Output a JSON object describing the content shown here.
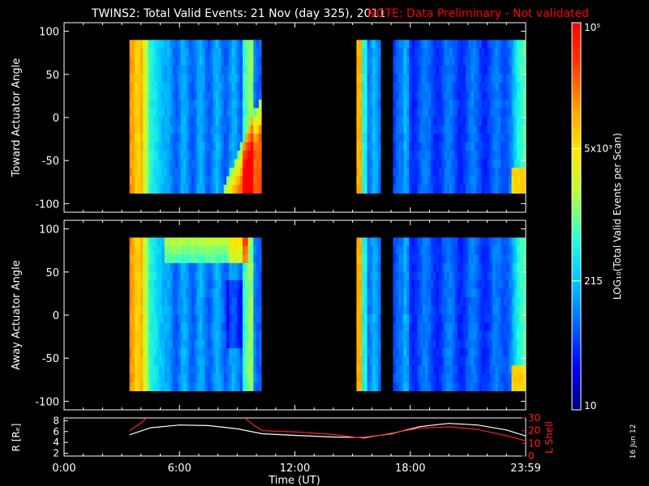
{
  "header": {
    "title": "TWINS2: Total Valid Events: 21 Nov (day 325), 2011",
    "note": "NOTE: Data Preliminary - Not validated"
  },
  "colors": {
    "background": "#000000",
    "foreground": "#ffffff",
    "note": "#ff0000",
    "l_shell": "#ff2020",
    "colormap": [
      "#00007a",
      "#0000ff",
      "#0066ff",
      "#00c8ff",
      "#28ffd8",
      "#b4ff3c",
      "#ffe800",
      "#ffa000",
      "#ff3c00",
      "#ff0000"
    ]
  },
  "chart_data": [
    {
      "type": "heatmap",
      "ylabel": "Toward Actuator Angle",
      "ylim": [
        -110,
        110
      ],
      "yticks": [
        "-100",
        "-50",
        "0",
        "50",
        "100"
      ],
      "ytick_values": [
        -100,
        -50,
        0,
        50,
        100
      ],
      "xlim_hours": [
        0,
        24
      ],
      "angle_range": [
        -88,
        90
      ],
      "data_intervals_hours": [
        [
          3.4,
          10.3
        ],
        [
          15.2,
          16.5
        ],
        [
          17.1,
          24.0
        ]
      ],
      "scale": "log"
    },
    {
      "type": "heatmap",
      "ylabel": "Away Actuator Angle",
      "ylim": [
        -110,
        110
      ],
      "yticks": [
        "-100",
        "-50",
        "0",
        "50",
        "100"
      ],
      "ytick_values": [
        -100,
        -50,
        0,
        50,
        100
      ],
      "xlim_hours": [
        0,
        24
      ],
      "angle_range": [
        -88,
        90
      ],
      "data_intervals_hours": [
        [
          3.4,
          10.3
        ],
        [
          15.2,
          16.5
        ],
        [
          17.1,
          24.0
        ]
      ],
      "scale": "log"
    },
    {
      "type": "line",
      "ylabel_left": "R [Rₑ]",
      "yticks_left": [
        "2",
        "4",
        "6",
        "8"
      ],
      "ylim_left": [
        1.5,
        8.5
      ],
      "ylabel_right": "L Shell",
      "yticks_right": [
        "0",
        "10",
        "20",
        "30"
      ],
      "ylim_right": [
        0,
        30
      ],
      "xlabel": "Time (UT)",
      "xticks": [
        "0:00",
        "6:00",
        "12:00",
        "18:00",
        "23:59"
      ],
      "xtick_hours": [
        0,
        6,
        12,
        18,
        24
      ],
      "series": [
        {
          "axis": "left",
          "color": "#ffffff",
          "x": [
            3.4,
            4.5,
            6.0,
            7.5,
            9.0,
            10.3,
            12.0,
            14.0,
            15.6,
            17.0,
            18.5,
            20.0,
            21.5,
            23.0,
            24.0
          ],
          "y": [
            5.4,
            6.7,
            7.2,
            7.1,
            6.5,
            5.6,
            5.3,
            5.0,
            4.9,
            5.6,
            6.9,
            7.5,
            7.2,
            6.3,
            5.2
          ]
        },
        {
          "axis": "right",
          "color": "#ff2020",
          "x": [
            3.4,
            4.0,
            4.3
          ],
          "y": [
            20,
            26,
            30
          ]
        },
        {
          "axis": "right",
          "color": "#ff2020",
          "x": [
            9.4,
            9.8,
            10.3,
            12.0,
            14.0,
            15.6,
            17.0,
            18.5,
            20.0,
            21.5,
            23.0,
            24.0
          ],
          "y": [
            30,
            25,
            20,
            19,
            17,
            14,
            18,
            22,
            23,
            21,
            16,
            12
          ]
        }
      ]
    }
  ],
  "colorbar": {
    "label": "LOG₁₀(Total Valid Events per Scan)",
    "min_value": 10,
    "max_value": 100000,
    "ticks": [
      {
        "label": "10⁵",
        "value": 100000
      },
      {
        "label": "5x10³",
        "value": 5000
      },
      {
        "label": "215",
        "value": 215
      },
      {
        "label": "10",
        "value": 10
      }
    ]
  },
  "footer": {
    "date_stamp": "16 Jun 12"
  }
}
